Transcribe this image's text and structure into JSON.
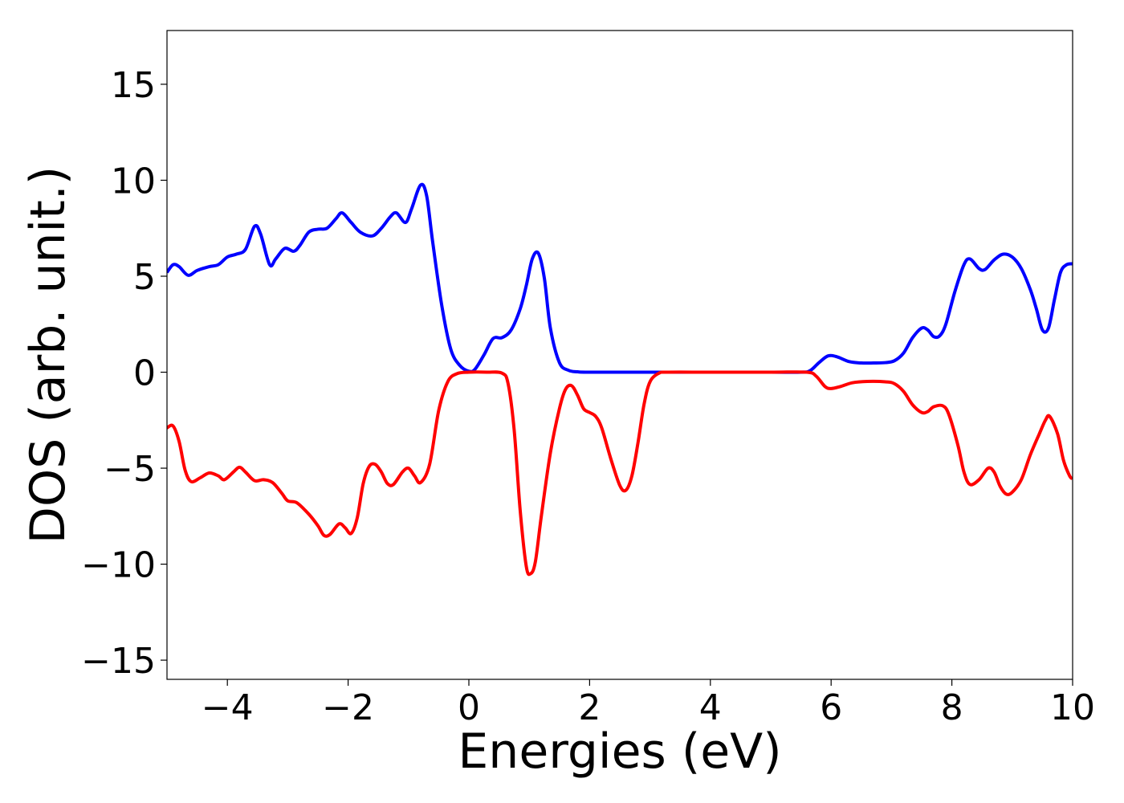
{
  "chart_data": {
    "type": "line",
    "title": "",
    "xlabel": "Energies (eV)",
    "ylabel": "DOS (arb. unit.)",
    "xlim": [
      -5,
      10
    ],
    "ylim": [
      -16,
      17.8
    ],
    "grid": false,
    "legend": "none",
    "x_ticks": [
      -4,
      -2,
      0,
      2,
      4,
      6,
      8,
      10
    ],
    "x_tick_labels": [
      "−4",
      "−2",
      "0",
      "2",
      "4",
      "6",
      "8",
      "10"
    ],
    "y_ticks": [
      15,
      10,
      5,
      0,
      -5,
      -10,
      -15
    ],
    "y_tick_labels": [
      "15",
      "10",
      "5",
      "0",
      "−5",
      "−10",
      "−15"
    ],
    "series": [
      {
        "color": "#0000ff",
        "points": [
          [
            -5.0,
            5.2
          ],
          [
            -4.9,
            5.6
          ],
          [
            -4.8,
            5.5
          ],
          [
            -4.65,
            5.05
          ],
          [
            -4.5,
            5.3
          ],
          [
            -4.3,
            5.5
          ],
          [
            -4.15,
            5.6
          ],
          [
            -4.0,
            6.0
          ],
          [
            -3.85,
            6.15
          ],
          [
            -3.7,
            6.4
          ],
          [
            -3.55,
            7.6
          ],
          [
            -3.45,
            7.2
          ],
          [
            -3.3,
            5.6
          ],
          [
            -3.2,
            5.9
          ],
          [
            -3.05,
            6.45
          ],
          [
            -2.9,
            6.3
          ],
          [
            -2.8,
            6.6
          ],
          [
            -2.65,
            7.3
          ],
          [
            -2.5,
            7.45
          ],
          [
            -2.35,
            7.5
          ],
          [
            -2.2,
            8.0
          ],
          [
            -2.1,
            8.3
          ],
          [
            -1.95,
            7.8
          ],
          [
            -1.8,
            7.3
          ],
          [
            -1.6,
            7.1
          ],
          [
            -1.45,
            7.5
          ],
          [
            -1.3,
            8.1
          ],
          [
            -1.2,
            8.3
          ],
          [
            -1.05,
            7.8
          ],
          [
            -0.95,
            8.5
          ],
          [
            -0.8,
            9.75
          ],
          [
            -0.7,
            9.2
          ],
          [
            -0.6,
            6.8
          ],
          [
            -0.45,
            3.5
          ],
          [
            -0.3,
            1.2
          ],
          [
            -0.15,
            0.35
          ],
          [
            0.0,
            0.05
          ],
          [
            0.1,
            0.15
          ],
          [
            0.25,
            0.9
          ],
          [
            0.4,
            1.75
          ],
          [
            0.55,
            1.8
          ],
          [
            0.7,
            2.2
          ],
          [
            0.85,
            3.3
          ],
          [
            0.95,
            4.5
          ],
          [
            1.05,
            5.9
          ],
          [
            1.15,
            6.2
          ],
          [
            1.25,
            4.9
          ],
          [
            1.35,
            2.3
          ],
          [
            1.5,
            0.5
          ],
          [
            1.65,
            0.1
          ],
          [
            1.8,
            0.02
          ],
          [
            2.0,
            0.0
          ],
          [
            3.0,
            0.0
          ],
          [
            4.0,
            0.0
          ],
          [
            5.0,
            0.0
          ],
          [
            5.5,
            0.0
          ],
          [
            5.65,
            0.08
          ],
          [
            5.8,
            0.5
          ],
          [
            5.95,
            0.85
          ],
          [
            6.1,
            0.8
          ],
          [
            6.3,
            0.55
          ],
          [
            6.5,
            0.48
          ],
          [
            6.7,
            0.48
          ],
          [
            6.9,
            0.5
          ],
          [
            7.05,
            0.6
          ],
          [
            7.2,
            1.0
          ],
          [
            7.35,
            1.8
          ],
          [
            7.5,
            2.3
          ],
          [
            7.6,
            2.2
          ],
          [
            7.7,
            1.85
          ],
          [
            7.8,
            1.9
          ],
          [
            7.9,
            2.5
          ],
          [
            8.05,
            4.2
          ],
          [
            8.2,
            5.6
          ],
          [
            8.3,
            5.9
          ],
          [
            8.45,
            5.4
          ],
          [
            8.55,
            5.35
          ],
          [
            8.7,
            5.85
          ],
          [
            8.85,
            6.15
          ],
          [
            9.0,
            6.0
          ],
          [
            9.15,
            5.4
          ],
          [
            9.3,
            4.3
          ],
          [
            9.4,
            3.3
          ],
          [
            9.5,
            2.2
          ],
          [
            9.6,
            2.3
          ],
          [
            9.7,
            3.8
          ],
          [
            9.8,
            5.2
          ],
          [
            9.9,
            5.6
          ],
          [
            10.0,
            5.65
          ]
        ]
      },
      {
        "color": "#ff0000",
        "points": [
          [
            -5.0,
            -2.9
          ],
          [
            -4.9,
            -2.8
          ],
          [
            -4.8,
            -3.6
          ],
          [
            -4.7,
            -5.1
          ],
          [
            -4.6,
            -5.7
          ],
          [
            -4.45,
            -5.5
          ],
          [
            -4.3,
            -5.25
          ],
          [
            -4.15,
            -5.4
          ],
          [
            -4.05,
            -5.6
          ],
          [
            -3.9,
            -5.2
          ],
          [
            -3.8,
            -4.95
          ],
          [
            -3.7,
            -5.2
          ],
          [
            -3.55,
            -5.65
          ],
          [
            -3.4,
            -5.6
          ],
          [
            -3.25,
            -5.75
          ],
          [
            -3.1,
            -6.3
          ],
          [
            -3.0,
            -6.7
          ],
          [
            -2.85,
            -6.8
          ],
          [
            -2.65,
            -7.4
          ],
          [
            -2.5,
            -8.0
          ],
          [
            -2.4,
            -8.5
          ],
          [
            -2.3,
            -8.45
          ],
          [
            -2.15,
            -7.9
          ],
          [
            -2.05,
            -8.1
          ],
          [
            -1.95,
            -8.4
          ],
          [
            -1.85,
            -7.6
          ],
          [
            -1.75,
            -5.8
          ],
          [
            -1.65,
            -4.9
          ],
          [
            -1.55,
            -4.8
          ],
          [
            -1.45,
            -5.2
          ],
          [
            -1.35,
            -5.8
          ],
          [
            -1.25,
            -5.85
          ],
          [
            -1.1,
            -5.2
          ],
          [
            -1.0,
            -5.0
          ],
          [
            -0.9,
            -5.4
          ],
          [
            -0.8,
            -5.75
          ],
          [
            -0.65,
            -4.8
          ],
          [
            -0.5,
            -2.0
          ],
          [
            -0.35,
            -0.5
          ],
          [
            -0.2,
            -0.08
          ],
          [
            0.0,
            0.0
          ],
          [
            0.3,
            0.0
          ],
          [
            0.55,
            -0.05
          ],
          [
            0.65,
            -0.6
          ],
          [
            0.75,
            -3.0
          ],
          [
            0.85,
            -7.2
          ],
          [
            0.95,
            -10.1
          ],
          [
            1.02,
            -10.5
          ],
          [
            1.1,
            -9.9
          ],
          [
            1.2,
            -7.5
          ],
          [
            1.35,
            -4.2
          ],
          [
            1.5,
            -1.9
          ],
          [
            1.6,
            -0.9
          ],
          [
            1.7,
            -0.7
          ],
          [
            1.8,
            -1.2
          ],
          [
            1.9,
            -1.9
          ],
          [
            2.0,
            -2.1
          ],
          [
            2.1,
            -2.3
          ],
          [
            2.2,
            -2.9
          ],
          [
            2.35,
            -4.5
          ],
          [
            2.5,
            -5.9
          ],
          [
            2.6,
            -6.15
          ],
          [
            2.7,
            -5.4
          ],
          [
            2.8,
            -3.7
          ],
          [
            2.9,
            -1.7
          ],
          [
            3.0,
            -0.5
          ],
          [
            3.15,
            -0.05
          ],
          [
            3.3,
            0.0
          ],
          [
            4.0,
            0.0
          ],
          [
            5.0,
            0.0
          ],
          [
            5.6,
            0.0
          ],
          [
            5.75,
            -0.2
          ],
          [
            5.9,
            -0.75
          ],
          [
            6.0,
            -0.85
          ],
          [
            6.15,
            -0.75
          ],
          [
            6.35,
            -0.55
          ],
          [
            6.6,
            -0.48
          ],
          [
            6.9,
            -0.5
          ],
          [
            7.05,
            -0.6
          ],
          [
            7.2,
            -1.0
          ],
          [
            7.35,
            -1.7
          ],
          [
            7.5,
            -2.1
          ],
          [
            7.6,
            -2.05
          ],
          [
            7.7,
            -1.8
          ],
          [
            7.85,
            -1.75
          ],
          [
            7.95,
            -2.2
          ],
          [
            8.1,
            -3.8
          ],
          [
            8.2,
            -5.2
          ],
          [
            8.3,
            -5.85
          ],
          [
            8.45,
            -5.6
          ],
          [
            8.6,
            -5.0
          ],
          [
            8.7,
            -5.2
          ],
          [
            8.8,
            -5.95
          ],
          [
            8.9,
            -6.35
          ],
          [
            9.0,
            -6.25
          ],
          [
            9.15,
            -5.6
          ],
          [
            9.3,
            -4.3
          ],
          [
            9.45,
            -3.2
          ],
          [
            9.55,
            -2.5
          ],
          [
            9.62,
            -2.3
          ],
          [
            9.75,
            -3.2
          ],
          [
            9.85,
            -4.6
          ],
          [
            9.95,
            -5.4
          ],
          [
            10.0,
            -5.55
          ]
        ]
      }
    ]
  }
}
